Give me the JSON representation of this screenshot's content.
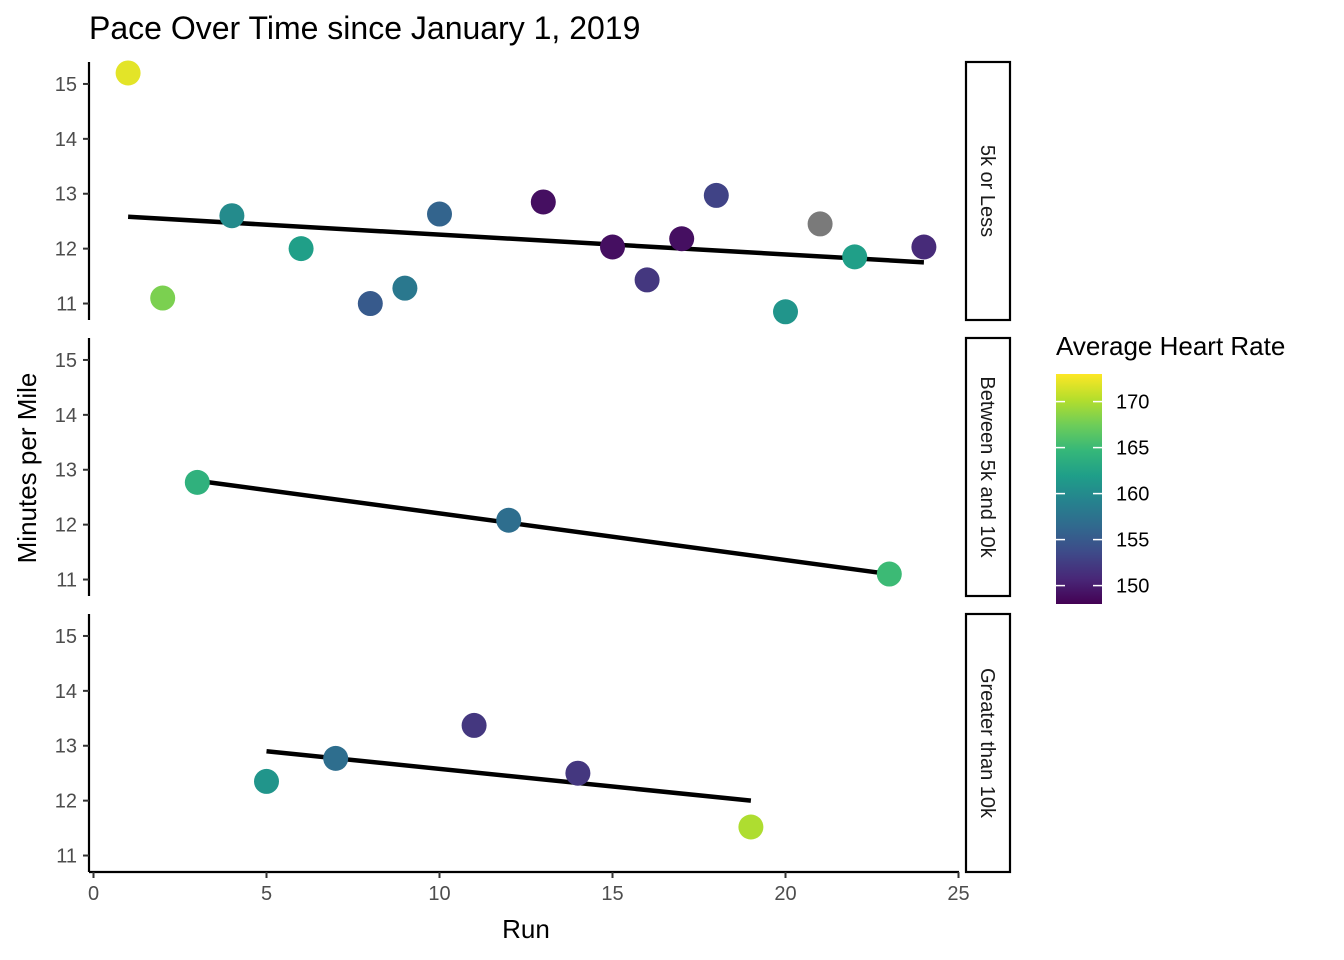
{
  "chart_data": {
    "type": "scatter",
    "title": "Pace Over Time since January 1, 2019",
    "xlabel": "Run",
    "ylabel": "Minutes per Mile",
    "xlim": [
      0,
      25
    ],
    "ylim": [
      10.7,
      15.4
    ],
    "x_ticks": [
      0,
      5,
      10,
      15,
      20,
      25
    ],
    "y_ticks": [
      11,
      12,
      13,
      14,
      15
    ],
    "grid": false,
    "legend": {
      "title": "Average Heart Rate",
      "placement": "right",
      "type": "colorbar",
      "range": [
        148,
        173
      ],
      "ticks": [
        150,
        155,
        160,
        165,
        170
      ],
      "palette": [
        "#440154",
        "#482878",
        "#3E4A89",
        "#31688E",
        "#26828E",
        "#1F9E89",
        "#35B779",
        "#6DCD59",
        "#B4DE2C",
        "#FDE725"
      ]
    },
    "na_color": "#7a7a7a",
    "trend_color": "#000000",
    "panels": [
      {
        "label": "5k or Less",
        "points": [
          {
            "x": 1,
            "y": 15.2,
            "hr": 172
          },
          {
            "x": 2,
            "y": 11.1,
            "hr": 168
          },
          {
            "x": 4,
            "y": 12.6,
            "hr": 160
          },
          {
            "x": 6,
            "y": 12.0,
            "hr": 162
          },
          {
            "x": 8,
            "y": 11.0,
            "hr": 155
          },
          {
            "x": 9,
            "y": 11.28,
            "hr": 158
          },
          {
            "x": 10,
            "y": 12.63,
            "hr": 156
          },
          {
            "x": 13,
            "y": 12.85,
            "hr": 149
          },
          {
            "x": 15,
            "y": 12.03,
            "hr": 149
          },
          {
            "x": 16,
            "y": 11.43,
            "hr": 152
          },
          {
            "x": 17,
            "y": 12.18,
            "hr": 149
          },
          {
            "x": 18,
            "y": 12.97,
            "hr": 153
          },
          {
            "x": 20,
            "y": 10.85,
            "hr": 161
          },
          {
            "x": 21,
            "y": 12.45,
            "hr": null
          },
          {
            "x": 22,
            "y": 11.85,
            "hr": 162
          },
          {
            "x": 24,
            "y": 12.03,
            "hr": 151
          }
        ],
        "trend": {
          "x": [
            1,
            24
          ],
          "y": [
            12.58,
            11.75
          ]
        }
      },
      {
        "label": "Between 5k and 10k",
        "points": [
          {
            "x": 3,
            "y": 12.77,
            "hr": 164
          },
          {
            "x": 12,
            "y": 12.08,
            "hr": 157
          },
          {
            "x": 23,
            "y": 11.1,
            "hr": 165
          }
        ],
        "trend": {
          "x": [
            3,
            23
          ],
          "y": [
            12.8,
            11.1
          ]
        }
      },
      {
        "label": "Greater than 10k",
        "points": [
          {
            "x": 5,
            "y": 12.35,
            "hr": 161
          },
          {
            "x": 7,
            "y": 12.77,
            "hr": 157
          },
          {
            "x": 11,
            "y": 13.37,
            "hr": 152
          },
          {
            "x": 14,
            "y": 12.5,
            "hr": 152
          },
          {
            "x": 19,
            "y": 11.52,
            "hr": 170
          }
        ],
        "trend": {
          "x": [
            5,
            19
          ],
          "y": [
            12.9,
            12.0
          ]
        }
      }
    ]
  }
}
